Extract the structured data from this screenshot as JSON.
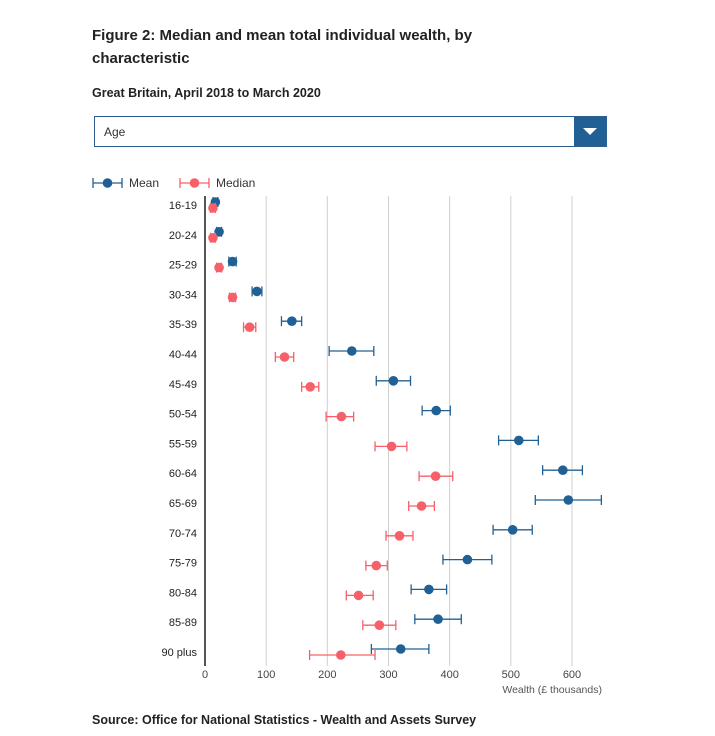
{
  "title": "Figure 2: Median and mean total individual wealth, by characteristic",
  "subtitle": "Great Britain, April 2018 to March 2020",
  "dropdown": {
    "selected": "Age"
  },
  "source": "Source: Office for National Statistics - Wealth and Assets Survey",
  "colors": {
    "mean": "#206095",
    "median": "#f66068",
    "grid": "#d0d0d0",
    "axis": "#555555",
    "dropdown": "#206095"
  },
  "chart_data": {
    "type": "scatter",
    "orientation": "horizontal",
    "categories": [
      "16-19",
      "20-24",
      "25-29",
      "30-34",
      "35-39",
      "40-44",
      "45-49",
      "50-54",
      "55-59",
      "60-64",
      "65-69",
      "70-74",
      "75-79",
      "80-84",
      "85-89",
      "90 plus"
    ],
    "series": [
      {
        "name": "Mean",
        "values": [
          17,
          23,
          45,
          85,
          142,
          240,
          308,
          378,
          513,
          585,
          594,
          503,
          429,
          366,
          381,
          320
        ],
        "low": [
          13,
          19,
          39,
          77,
          125,
          203,
          280,
          355,
          480,
          552,
          540,
          471,
          389,
          337,
          343,
          272
        ],
        "high": [
          21,
          27,
          51,
          93,
          158,
          276,
          336,
          401,
          545,
          617,
          648,
          535,
          469,
          395,
          419,
          366
        ]
      },
      {
        "name": "Median",
        "values": [
          13,
          13,
          23,
          45,
          73,
          130,
          172,
          223,
          305,
          377,
          354,
          318,
          280,
          251,
          285,
          222
        ],
        "low": [
          9,
          9,
          19,
          40,
          63,
          115,
          158,
          198,
          278,
          350,
          333,
          296,
          263,
          231,
          258,
          171
        ],
        "high": [
          17,
          17,
          27,
          50,
          83,
          145,
          186,
          243,
          330,
          405,
          375,
          340,
          298,
          275,
          312,
          278
        ]
      }
    ],
    "xlabel": "Wealth (£ thousands)",
    "xlim": [
      0,
      660
    ],
    "xticks": [
      0,
      100,
      200,
      300,
      400,
      500,
      600
    ],
    "grid": true,
    "legend": "top-left"
  }
}
